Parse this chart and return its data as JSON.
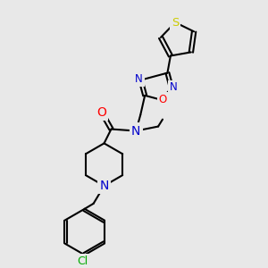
{
  "bg_color": "#e8e8e8",
  "bond_color": "#000000",
  "bond_width": 1.5,
  "atom_colors": {
    "N": "#0000cc",
    "O": "#ff0000",
    "S": "#cccc00",
    "Cl": "#00aa00",
    "C": "#000000"
  },
  "font_size": 8.5,
  "figsize": [
    3.0,
    3.0
  ],
  "dpi": 100
}
